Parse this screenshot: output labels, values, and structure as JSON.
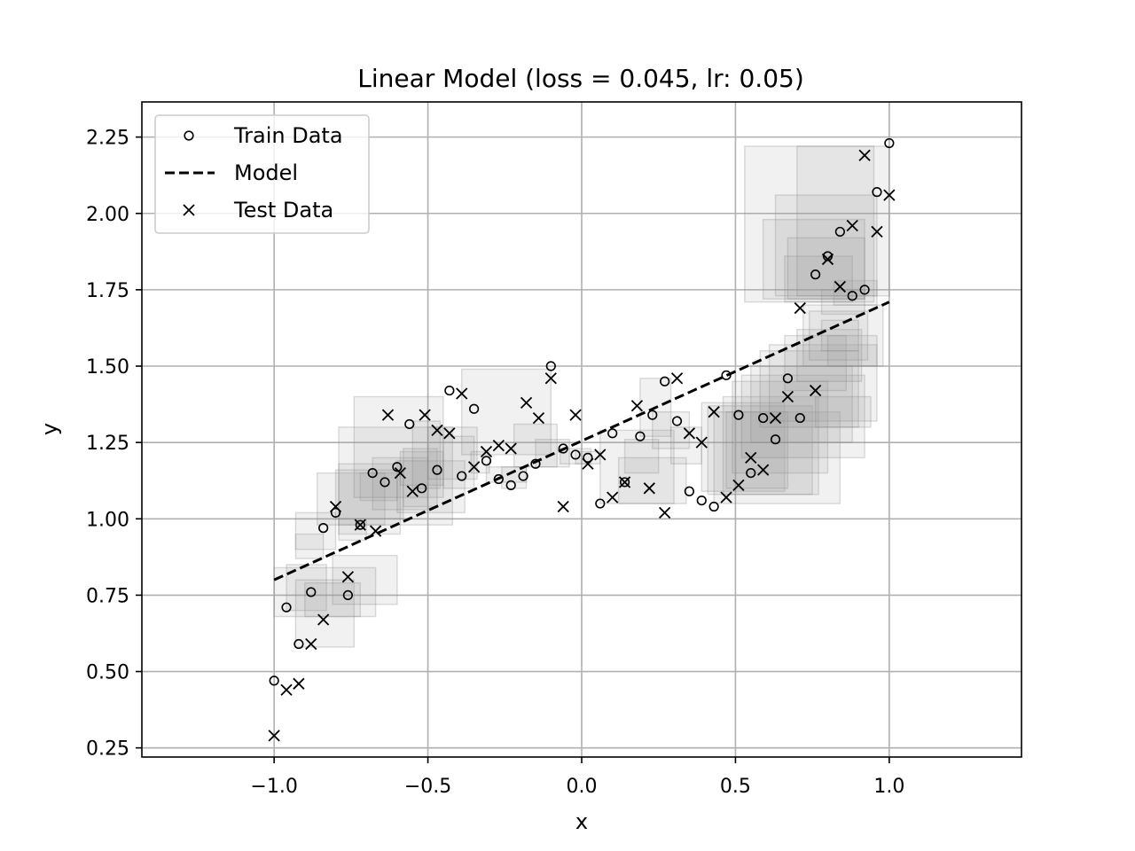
{
  "chart_data": {
    "type": "scatter",
    "title": "Linear Model (loss = 0.045, lr: 0.05)",
    "xlabel": "x",
    "ylabel": "y",
    "xlim": [
      -1.43,
      1.43
    ],
    "ylim": [
      0.22,
      2.365
    ],
    "grid": true,
    "legend_position": "top-left",
    "x_ticks": [
      -1.0,
      -0.5,
      0.0,
      0.5,
      1.0
    ],
    "x_tick_labels": [
      "−1.0",
      "−0.5",
      "0.0",
      "0.5",
      "1.0"
    ],
    "y_ticks": [
      0.25,
      0.5,
      0.75,
      1.0,
      1.25,
      1.5,
      1.75,
      2.0,
      2.25
    ],
    "y_tick_labels": [
      "0.25",
      "0.50",
      "0.75",
      "1.00",
      "1.25",
      "1.50",
      "1.75",
      "2.00",
      "2.25"
    ],
    "colors": {
      "marker": "#000000",
      "grid": "#b0b0b0",
      "box_fill": "#999999",
      "box_stroke": "#808080"
    },
    "series": [
      {
        "name": "Train Data",
        "marker": "circle",
        "points": [
          [
            -1.0,
            0.47
          ],
          [
            -0.96,
            0.71
          ],
          [
            -0.92,
            0.59
          ],
          [
            -0.88,
            0.76
          ],
          [
            -0.84,
            0.97
          ],
          [
            -0.8,
            1.02
          ],
          [
            -0.76,
            0.75
          ],
          [
            -0.72,
            0.98
          ],
          [
            -0.68,
            1.15
          ],
          [
            -0.64,
            1.12
          ],
          [
            -0.6,
            1.17
          ],
          [
            -0.56,
            1.31
          ],
          [
            -0.52,
            1.1
          ],
          [
            -0.47,
            1.16
          ],
          [
            -0.43,
            1.42
          ],
          [
            -0.39,
            1.14
          ],
          [
            -0.35,
            1.36
          ],
          [
            -0.31,
            1.19
          ],
          [
            -0.27,
            1.13
          ],
          [
            -0.23,
            1.11
          ],
          [
            -0.19,
            1.14
          ],
          [
            -0.15,
            1.18
          ],
          [
            -0.1,
            1.5
          ],
          [
            -0.06,
            1.23
          ],
          [
            -0.02,
            1.21
          ],
          [
            0.02,
            1.2
          ],
          [
            0.06,
            1.05
          ],
          [
            0.1,
            1.28
          ],
          [
            0.14,
            1.12
          ],
          [
            0.19,
            1.27
          ],
          [
            0.23,
            1.34
          ],
          [
            0.27,
            1.45
          ],
          [
            0.31,
            1.32
          ],
          [
            0.35,
            1.09
          ],
          [
            0.39,
            1.06
          ],
          [
            0.43,
            1.04
          ],
          [
            0.47,
            1.47
          ],
          [
            0.51,
            1.34
          ],
          [
            0.55,
            1.15
          ],
          [
            0.59,
            1.33
          ],
          [
            0.63,
            1.26
          ],
          [
            0.67,
            1.46
          ],
          [
            0.71,
            1.33
          ],
          [
            0.76,
            1.8
          ],
          [
            0.8,
            1.86
          ],
          [
            0.84,
            1.94
          ],
          [
            0.88,
            1.73
          ],
          [
            0.92,
            1.75
          ],
          [
            0.96,
            2.07
          ],
          [
            1.0,
            2.23
          ]
        ]
      },
      {
        "name": "Model",
        "marker": "dashed-line",
        "line": [
          [
            -1.0,
            0.8
          ],
          [
            1.0,
            1.71
          ]
        ]
      },
      {
        "name": "Test Data",
        "marker": "x",
        "points": [
          [
            -1.0,
            0.29
          ],
          [
            -0.96,
            0.44
          ],
          [
            -0.92,
            0.46
          ],
          [
            -0.88,
            0.59
          ],
          [
            -0.84,
            0.67
          ],
          [
            -0.8,
            1.04
          ],
          [
            -0.76,
            0.81
          ],
          [
            -0.72,
            0.98
          ],
          [
            -0.67,
            0.96
          ],
          [
            -0.63,
            1.34
          ],
          [
            -0.59,
            1.15
          ],
          [
            -0.55,
            1.09
          ],
          [
            -0.51,
            1.34
          ],
          [
            -0.47,
            1.29
          ],
          [
            -0.43,
            1.28
          ],
          [
            -0.39,
            1.41
          ],
          [
            -0.35,
            1.17
          ],
          [
            -0.31,
            1.22
          ],
          [
            -0.27,
            1.24
          ],
          [
            -0.23,
            1.23
          ],
          [
            -0.18,
            1.38
          ],
          [
            -0.14,
            1.33
          ],
          [
            -0.1,
            1.46
          ],
          [
            -0.06,
            1.04
          ],
          [
            -0.02,
            1.34
          ],
          [
            0.02,
            1.18
          ],
          [
            0.06,
            1.21
          ],
          [
            0.1,
            1.07
          ],
          [
            0.14,
            1.12
          ],
          [
            0.18,
            1.37
          ],
          [
            0.22,
            1.1
          ],
          [
            0.27,
            1.02
          ],
          [
            0.31,
            1.46
          ],
          [
            0.35,
            1.28
          ],
          [
            0.39,
            1.25
          ],
          [
            0.43,
            1.35
          ],
          [
            0.47,
            1.07
          ],
          [
            0.51,
            1.11
          ],
          [
            0.55,
            1.2
          ],
          [
            0.59,
            1.16
          ],
          [
            0.63,
            1.33
          ],
          [
            0.67,
            1.4
          ],
          [
            0.71,
            1.69
          ],
          [
            0.76,
            1.42
          ],
          [
            0.8,
            1.85
          ],
          [
            0.84,
            1.76
          ],
          [
            0.88,
            1.96
          ],
          [
            0.92,
            2.19
          ],
          [
            0.96,
            1.94
          ],
          [
            1.0,
            2.06
          ]
        ]
      }
    ],
    "uncertainty_boxes": [
      [
        -1.0,
        0.68,
        -0.67,
        0.84
      ],
      [
        -0.96,
        0.7,
        -0.83,
        0.85
      ],
      [
        -0.93,
        0.58,
        -0.74,
        0.8
      ],
      [
        -0.9,
        0.68,
        -0.72,
        0.79
      ],
      [
        -0.93,
        0.87,
        -0.84,
        0.95
      ],
      [
        -0.93,
        0.9,
        -0.8,
        1.02
      ],
      [
        -0.81,
        0.72,
        -0.6,
        0.88
      ],
      [
        -0.79,
        0.93,
        -0.7,
        1.0
      ],
      [
        -0.86,
        0.98,
        -0.64,
        1.15
      ],
      [
        -0.79,
        0.95,
        -0.59,
        1.18
      ],
      [
        -0.8,
        1.0,
        -0.58,
        1.16
      ],
      [
        -0.72,
        1.06,
        -0.6,
        1.15
      ],
      [
        -0.68,
        1.03,
        -0.5,
        1.2
      ],
      [
        -0.79,
        0.98,
        -0.42,
        1.3
      ],
      [
        -0.74,
        1.07,
        -0.45,
        1.4
      ],
      [
        -0.6,
        1.02,
        -0.38,
        1.19
      ],
      [
        -0.59,
        1.11,
        -0.45,
        1.22
      ],
      [
        -0.58,
        1.04,
        -0.47,
        1.23
      ],
      [
        -0.55,
        1.1,
        -0.46,
        1.32
      ],
      [
        -0.5,
        1.13,
        -0.34,
        1.3
      ],
      [
        -0.45,
        1.1,
        -0.35,
        1.27
      ],
      [
        -0.36,
        1.15,
        -0.3,
        1.22
      ],
      [
        -0.31,
        1.12,
        -0.18,
        1.17
      ],
      [
        -0.26,
        1.1,
        -0.18,
        1.17
      ],
      [
        -0.39,
        1.21,
        -0.1,
        1.49
      ],
      [
        -0.22,
        1.17,
        -0.08,
        1.31
      ],
      [
        -0.15,
        1.17,
        -0.04,
        1.26
      ],
      [
        -0.07,
        1.18,
        0.03,
        1.23
      ],
      [
        -0.02,
        1.18,
        0.06,
        1.22
      ],
      [
        0.06,
        1.05,
        0.3,
        1.29
      ],
      [
        0.12,
        1.05,
        0.34,
        1.2
      ],
      [
        0.14,
        1.15,
        0.25,
        1.26
      ],
      [
        0.19,
        1.27,
        0.29,
        1.46
      ],
      [
        0.23,
        1.23,
        0.35,
        1.35
      ],
      [
        0.29,
        1.18,
        0.39,
        1.3
      ],
      [
        0.39,
        1.09,
        0.66,
        1.38
      ],
      [
        0.41,
        1.08,
        0.75,
        1.37
      ],
      [
        0.43,
        1.05,
        0.84,
        1.35
      ],
      [
        0.46,
        1.08,
        0.77,
        1.4
      ],
      [
        0.47,
        1.1,
        0.67,
        1.35
      ],
      [
        0.49,
        1.15,
        0.8,
        1.45
      ],
      [
        0.52,
        1.2,
        0.92,
        1.47
      ],
      [
        0.55,
        1.25,
        0.88,
        1.5
      ],
      [
        0.58,
        1.3,
        0.9,
        1.55
      ],
      [
        0.61,
        1.32,
        0.96,
        1.57
      ],
      [
        0.66,
        1.42,
        0.86,
        1.6
      ],
      [
        0.7,
        1.45,
        0.91,
        1.62
      ],
      [
        0.72,
        1.5,
        0.98,
        1.7
      ],
      [
        0.76,
        1.3,
        0.94,
        1.4
      ],
      [
        0.74,
        1.52,
        0.93,
        1.68
      ],
      [
        0.78,
        1.55,
        0.9,
        1.65
      ],
      [
        0.8,
        1.5,
        0.96,
        1.6
      ],
      [
        0.78,
        1.67,
        0.92,
        1.75
      ],
      [
        0.82,
        1.7,
        0.96,
        1.78
      ],
      [
        0.53,
        1.71,
        0.95,
        2.22
      ],
      [
        0.59,
        1.72,
        0.92,
        1.98
      ],
      [
        0.63,
        1.73,
        0.96,
        2.06
      ],
      [
        0.66,
        1.71,
        0.88,
        1.86
      ],
      [
        0.67,
        1.72,
        0.92,
        1.92
      ],
      [
        0.7,
        1.73,
        1.0,
        2.22
      ]
    ],
    "legend_entries": [
      "Train Data",
      "Model",
      "Test Data"
    ]
  }
}
